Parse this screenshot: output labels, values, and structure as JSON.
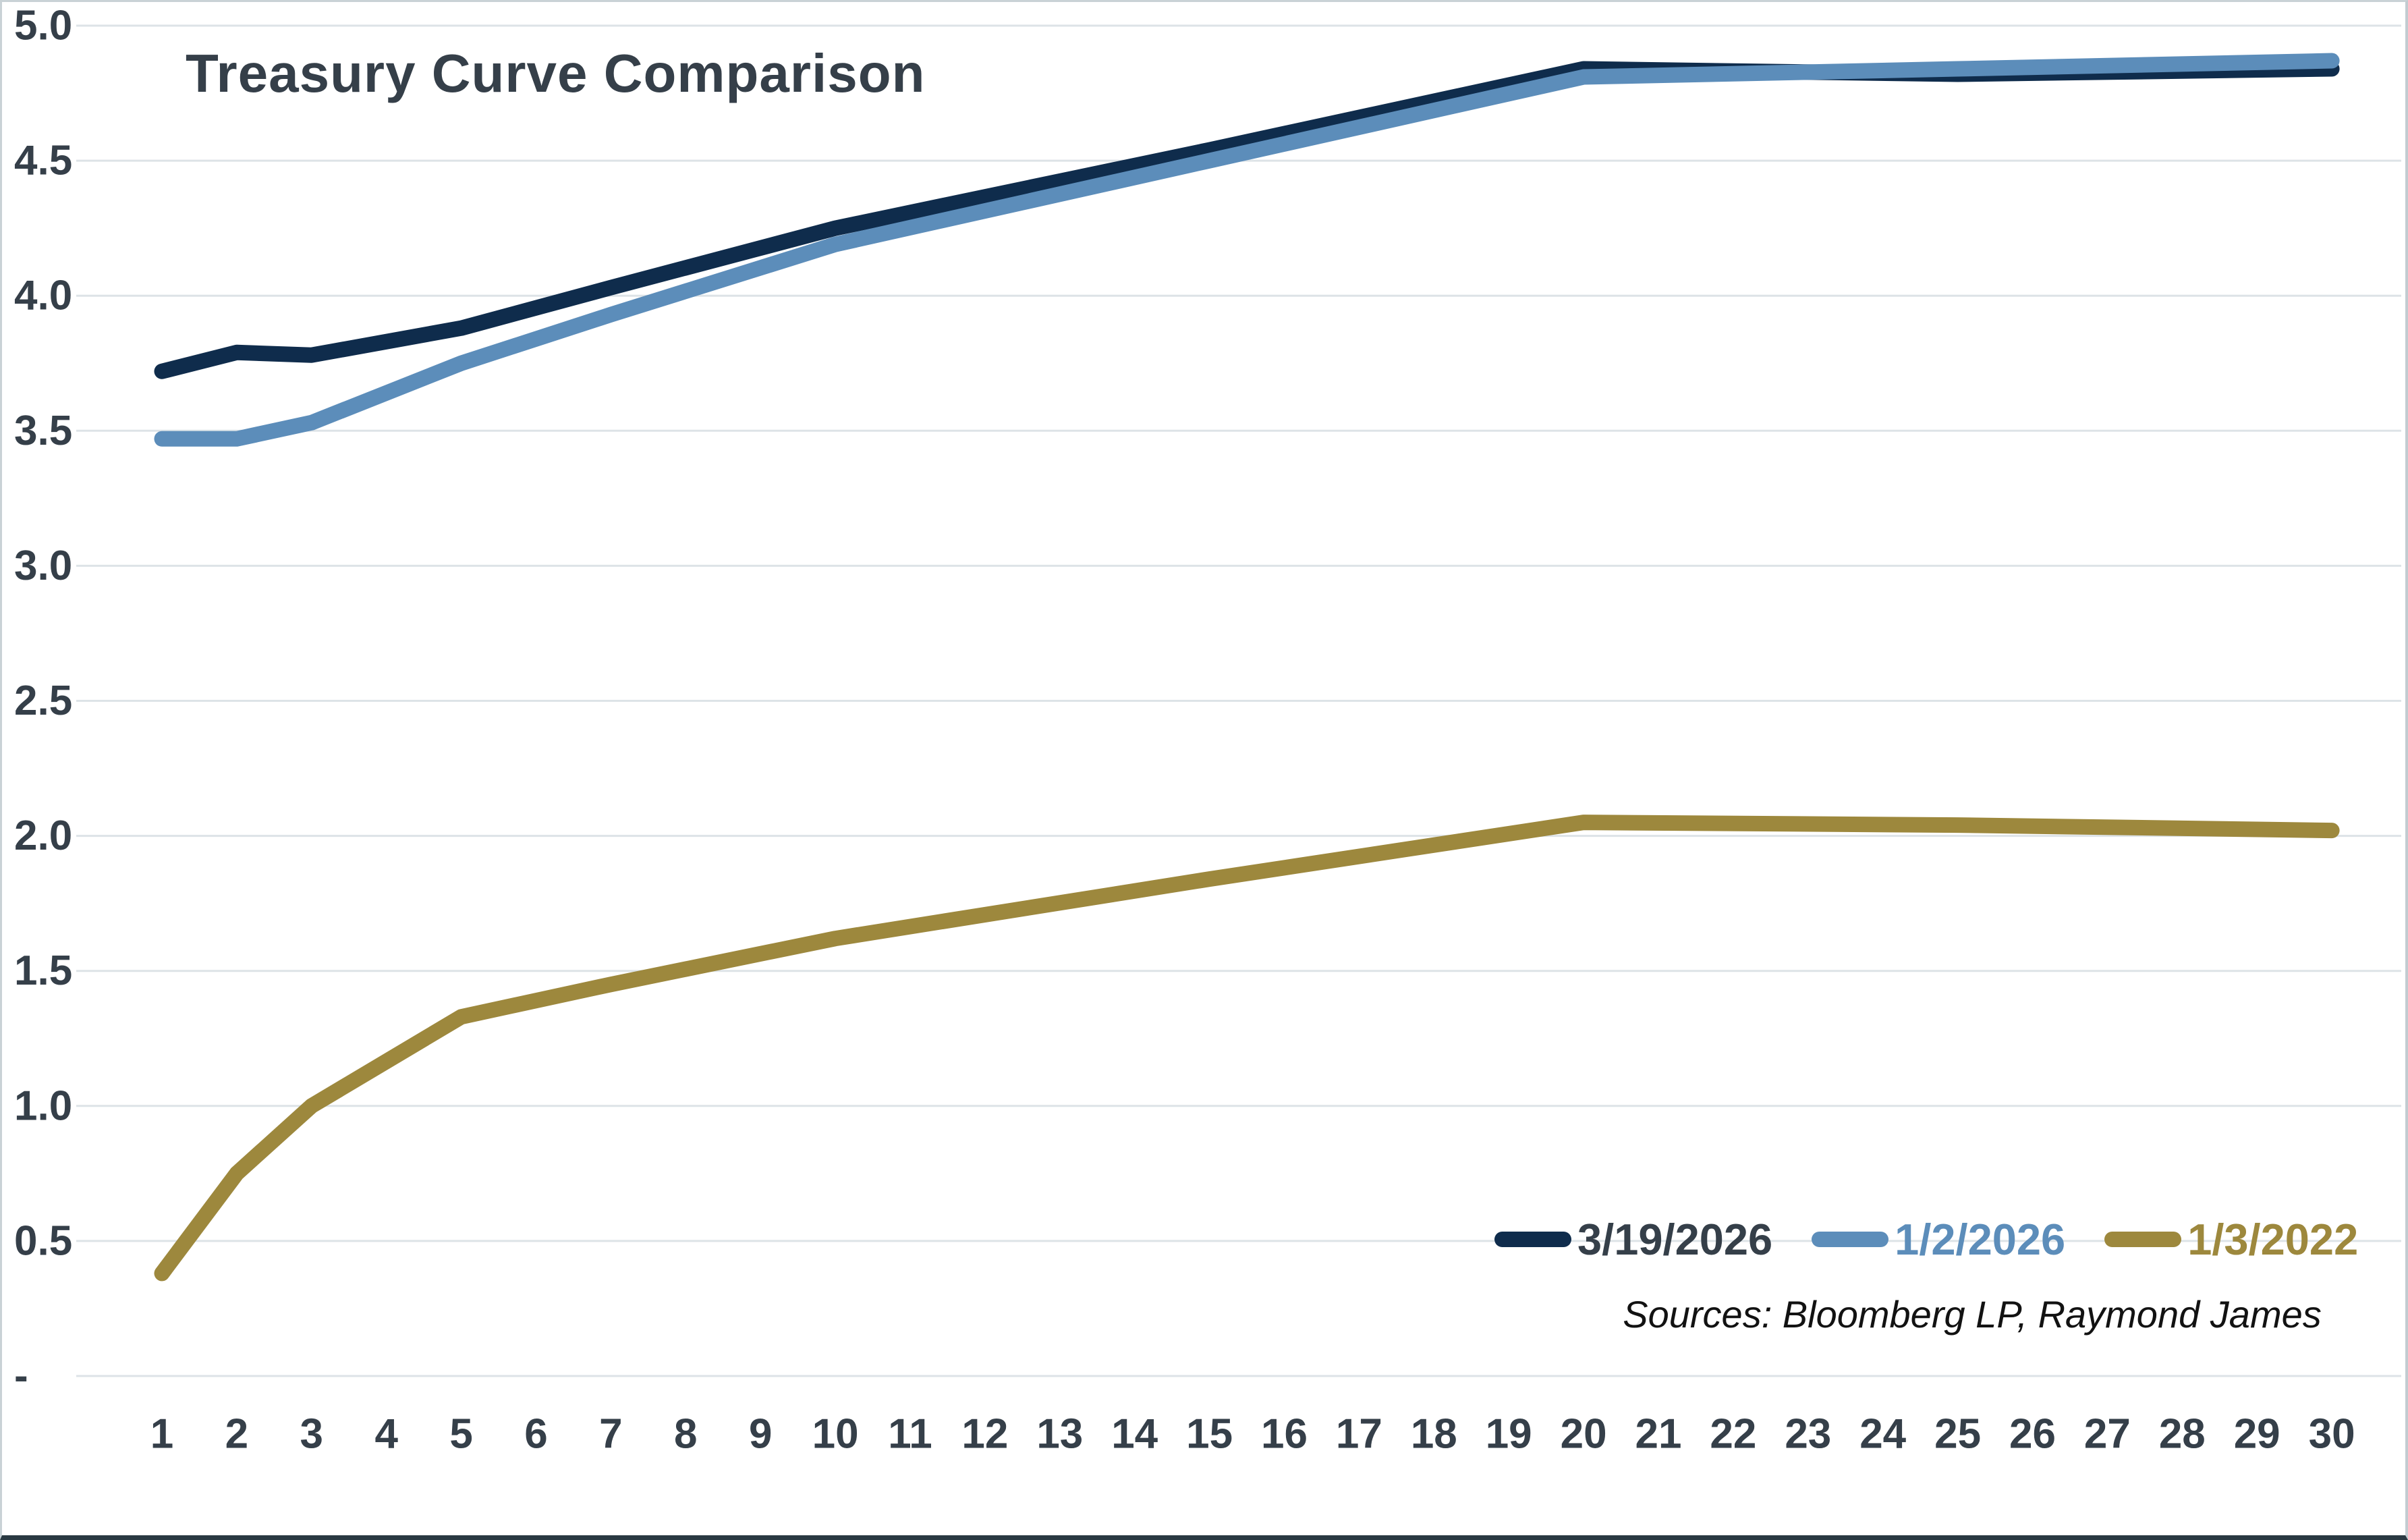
{
  "title": "Treasury Curve Comparison",
  "sources": "Sources: Bloomberg LP, Raymond James",
  "colors": {
    "background": "#FFFFFF",
    "grid": "#DDE3E7",
    "axis_text": "#353F49",
    "title_text": "#353F49",
    "sources_text": "#121212",
    "bottom_border": "#2A3942"
  },
  "chart_data": {
    "type": "line",
    "title": "Treasury Curve Comparison",
    "xlabel": "",
    "ylabel": "",
    "ylim": [
      0,
      5
    ],
    "grid": "horizontal",
    "legend_position": "bottom-right-inside",
    "x_axis_ticks": [
      1,
      2,
      3,
      4,
      5,
      6,
      7,
      8,
      9,
      10,
      11,
      12,
      13,
      14,
      15,
      16,
      17,
      18,
      19,
      20,
      21,
      22,
      23,
      24,
      25,
      26,
      27,
      28,
      29,
      30
    ],
    "y_axis_ticks": [
      {
        "value": 5.0,
        "label": "5.0"
      },
      {
        "value": 4.5,
        "label": "4.5"
      },
      {
        "value": 4.0,
        "label": "4.0"
      },
      {
        "value": 3.5,
        "label": "3.5"
      },
      {
        "value": 3.0,
        "label": "3.0"
      },
      {
        "value": 2.5,
        "label": "2.5"
      },
      {
        "value": 2.0,
        "label": "2.0"
      },
      {
        "value": 1.5,
        "label": "1.5"
      },
      {
        "value": 1.0,
        "label": "1.0"
      },
      {
        "value": 0.5,
        "label": "0.5"
      },
      {
        "value": 0.0,
        "label": "-"
      }
    ],
    "x": [
      1,
      2,
      3,
      5,
      7,
      10,
      15,
      20,
      25,
      30
    ],
    "series": [
      {
        "name": "3/19/2026",
        "color": "#0F2C4C",
        "label_color": "#353F49",
        "values": [
          3.72,
          3.79,
          3.78,
          3.88,
          4.03,
          4.25,
          4.54,
          4.84,
          4.82,
          4.84
        ]
      },
      {
        "name": "1/2/2026",
        "color": "#5C8DBA",
        "label_color": "#5C8DBA",
        "values": [
          3.47,
          3.47,
          3.53,
          3.75,
          3.93,
          4.19,
          4.5,
          4.81,
          4.84,
          4.87
        ]
      },
      {
        "name": "1/3/2022",
        "color": "#9D883D",
        "label_color": "#9D883D",
        "values": [
          0.38,
          0.75,
          1.0,
          1.33,
          1.45,
          1.62,
          1.84,
          2.05,
          2.04,
          2.02
        ]
      }
    ]
  }
}
